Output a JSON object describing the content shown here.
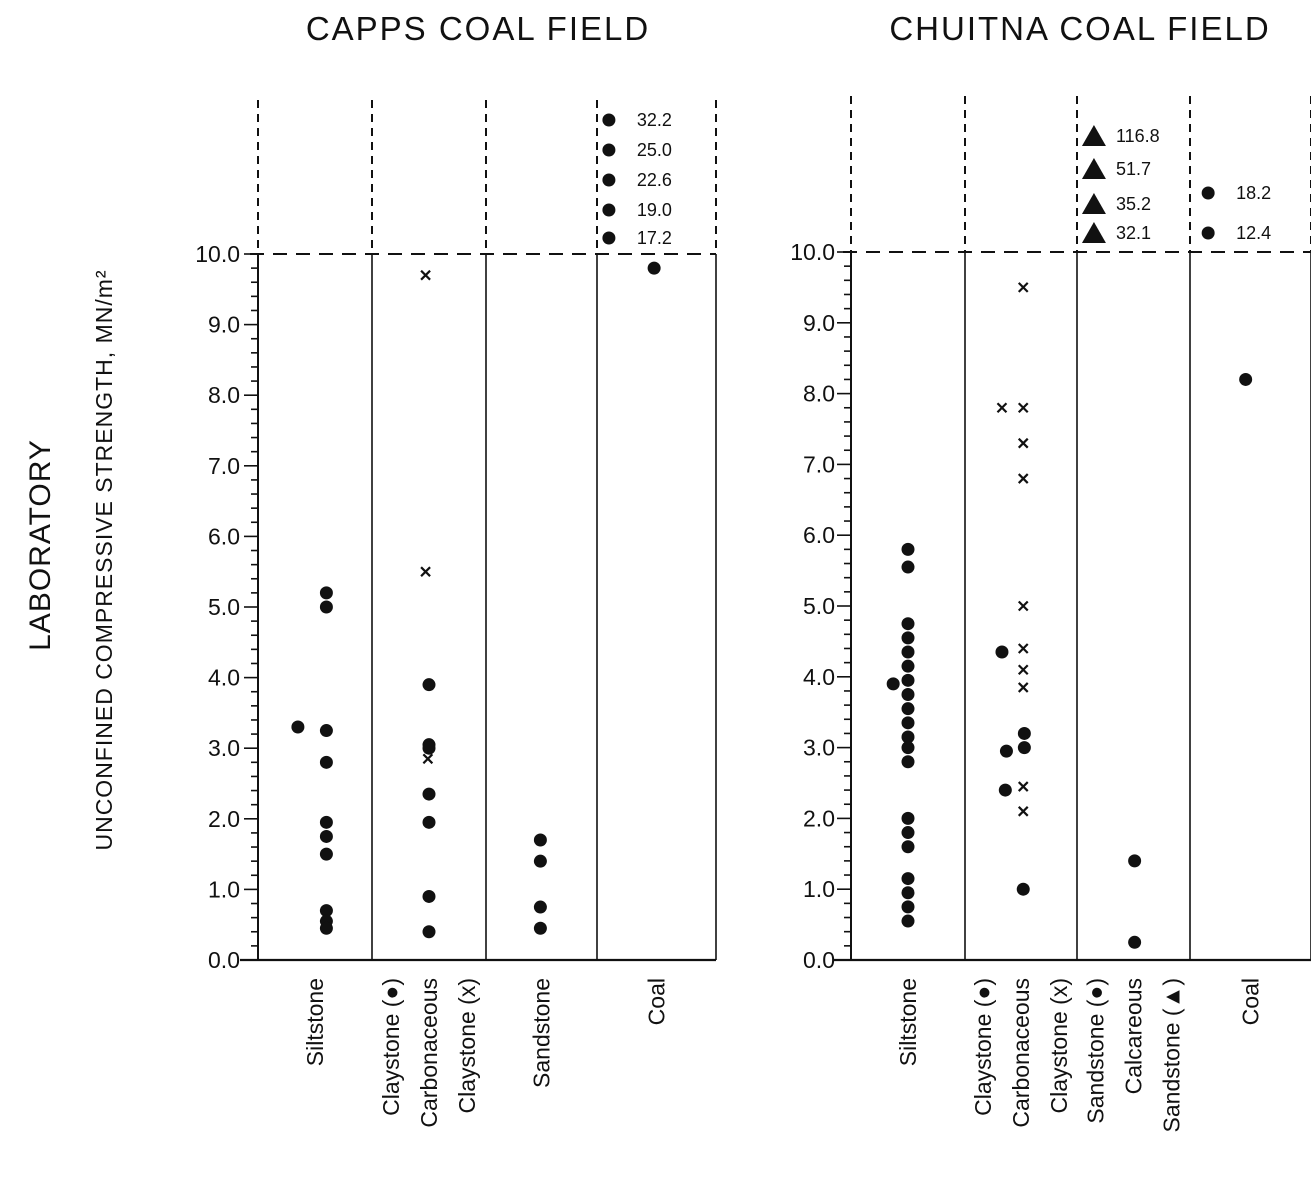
{
  "chart_data": {
    "type": "scatter",
    "ylabel_line1": "LABORATORY",
    "ylabel_line2": "UNCONFINED COMPRESSIVE STRENGTH, MN/m²",
    "ylim": [
      0,
      10
    ],
    "y_ticks": [
      "0.0",
      "1.0",
      "2.0",
      "3.0",
      "4.0",
      "5.0",
      "6.0",
      "7.0",
      "8.0",
      "9.0",
      "10.0"
    ],
    "symbols": {
      "dot": "solid circle",
      "x": "cross",
      "triangle": "solid triangle"
    },
    "panels": [
      {
        "title": "CAPPS  COAL  FIELD",
        "categories": [
          {
            "lines": [
              "Siltstone"
            ]
          },
          {
            "lines": [
              "Claystone  (●)",
              "Carbonaceous",
              "Claystone (x)"
            ]
          },
          {
            "lines": [
              "Sandstone"
            ]
          },
          {
            "lines": [
              "Coal"
            ]
          }
        ],
        "points": [
          {
            "cat": 0,
            "y": 5.2,
            "m": "dot",
            "off": 0.6
          },
          {
            "cat": 0,
            "y": 5.0,
            "m": "dot",
            "off": 0.6
          },
          {
            "cat": 0,
            "y": 3.3,
            "m": "dot",
            "off": 0.35
          },
          {
            "cat": 0,
            "y": 3.25,
            "m": "dot",
            "off": 0.6
          },
          {
            "cat": 0,
            "y": 2.8,
            "m": "dot",
            "off": 0.6
          },
          {
            "cat": 0,
            "y": 1.95,
            "m": "dot",
            "off": 0.6
          },
          {
            "cat": 0,
            "y": 1.75,
            "m": "dot",
            "off": 0.6
          },
          {
            "cat": 0,
            "y": 1.5,
            "m": "dot",
            "off": 0.6
          },
          {
            "cat": 0,
            "y": 0.7,
            "m": "dot",
            "off": 0.6
          },
          {
            "cat": 0,
            "y": 0.55,
            "m": "dot",
            "off": 0.6
          },
          {
            "cat": 0,
            "y": 0.45,
            "m": "dot",
            "off": 0.6
          },
          {
            "cat": 1,
            "y": 9.7,
            "m": "x",
            "off": 0.47
          },
          {
            "cat": 1,
            "y": 5.5,
            "m": "x",
            "off": 0.47
          },
          {
            "cat": 1,
            "y": 3.9,
            "m": "dot",
            "off": 0.5
          },
          {
            "cat": 1,
            "y": 3.05,
            "m": "dot",
            "off": 0.5
          },
          {
            "cat": 1,
            "y": 3.0,
            "m": "dot",
            "off": 0.5
          },
          {
            "cat": 1,
            "y": 2.85,
            "m": "x",
            "off": 0.49
          },
          {
            "cat": 1,
            "y": 2.35,
            "m": "dot",
            "off": 0.5
          },
          {
            "cat": 1,
            "y": 1.95,
            "m": "dot",
            "off": 0.5
          },
          {
            "cat": 1,
            "y": 0.9,
            "m": "dot",
            "off": 0.5
          },
          {
            "cat": 1,
            "y": 0.4,
            "m": "dot",
            "off": 0.5
          },
          {
            "cat": 2,
            "y": 1.7,
            "m": "dot",
            "off": 0.49
          },
          {
            "cat": 2,
            "y": 1.4,
            "m": "dot",
            "off": 0.49
          },
          {
            "cat": 2,
            "y": 0.75,
            "m": "dot",
            "off": 0.49
          },
          {
            "cat": 2,
            "y": 0.45,
            "m": "dot",
            "off": 0.49
          },
          {
            "cat": 3,
            "y": 9.8,
            "m": "dot",
            "off": 0.48
          }
        ],
        "offscale": [
          {
            "cat": 3,
            "m": "dot",
            "label": "32.2",
            "off": 0.1
          },
          {
            "cat": 3,
            "m": "dot",
            "label": "25.0",
            "off": 0.1
          },
          {
            "cat": 3,
            "m": "dot",
            "label": "22.6",
            "off": 0.1
          },
          {
            "cat": 3,
            "m": "dot",
            "label": "19.0",
            "off": 0.1
          },
          {
            "cat": 3,
            "m": "dot",
            "label": "17.2",
            "off": 0.1
          }
        ]
      },
      {
        "title": "CHUITNA  COAL  FIELD",
        "categories": [
          {
            "lines": [
              "Siltstone"
            ]
          },
          {
            "lines": [
              "Claystone  (●)",
              "Carbonaceous",
              "Claystone (x)"
            ]
          },
          {
            "lines": [
              "Sandstone (●)",
              "Calcareous",
              "Sandstone (▲)"
            ]
          },
          {
            "lines": [
              "Coal"
            ]
          }
        ],
        "points": [
          {
            "cat": 0,
            "y": 5.8,
            "m": "dot",
            "off": 0.5
          },
          {
            "cat": 0,
            "y": 5.55,
            "m": "dot",
            "off": 0.5
          },
          {
            "cat": 0,
            "y": 4.75,
            "m": "dot",
            "off": 0.5
          },
          {
            "cat": 0,
            "y": 4.55,
            "m": "dot",
            "off": 0.5
          },
          {
            "cat": 0,
            "y": 4.35,
            "m": "dot",
            "off": 0.5
          },
          {
            "cat": 0,
            "y": 4.15,
            "m": "dot",
            "off": 0.5
          },
          {
            "cat": 0,
            "y": 3.95,
            "m": "dot",
            "off": 0.5
          },
          {
            "cat": 0,
            "y": 3.9,
            "m": "dot",
            "off": 0.37
          },
          {
            "cat": 0,
            "y": 3.75,
            "m": "dot",
            "off": 0.5
          },
          {
            "cat": 0,
            "y": 3.55,
            "m": "dot",
            "off": 0.5
          },
          {
            "cat": 0,
            "y": 3.35,
            "m": "dot",
            "off": 0.5
          },
          {
            "cat": 0,
            "y": 3.15,
            "m": "dot",
            "off": 0.5
          },
          {
            "cat": 0,
            "y": 3.0,
            "m": "dot",
            "off": 0.5
          },
          {
            "cat": 0,
            "y": 2.8,
            "m": "dot",
            "off": 0.5
          },
          {
            "cat": 0,
            "y": 2.0,
            "m": "dot",
            "off": 0.5
          },
          {
            "cat": 0,
            "y": 1.8,
            "m": "dot",
            "off": 0.5
          },
          {
            "cat": 0,
            "y": 1.6,
            "m": "dot",
            "off": 0.5
          },
          {
            "cat": 0,
            "y": 1.15,
            "m": "dot",
            "off": 0.5
          },
          {
            "cat": 0,
            "y": 0.95,
            "m": "dot",
            "off": 0.5
          },
          {
            "cat": 0,
            "y": 0.75,
            "m": "dot",
            "off": 0.5
          },
          {
            "cat": 0,
            "y": 0.55,
            "m": "dot",
            "off": 0.5
          },
          {
            "cat": 1,
            "y": 9.5,
            "m": "x",
            "off": 0.52
          },
          {
            "cat": 1,
            "y": 7.8,
            "m": "x",
            "off": 0.33
          },
          {
            "cat": 1,
            "y": 7.8,
            "m": "x",
            "off": 0.52
          },
          {
            "cat": 1,
            "y": 7.3,
            "m": "x",
            "off": 0.52
          },
          {
            "cat": 1,
            "y": 6.8,
            "m": "x",
            "off": 0.52
          },
          {
            "cat": 1,
            "y": 5.0,
            "m": "x",
            "off": 0.52
          },
          {
            "cat": 1,
            "y": 4.4,
            "m": "x",
            "off": 0.52
          },
          {
            "cat": 1,
            "y": 4.35,
            "m": "dot",
            "off": 0.33
          },
          {
            "cat": 1,
            "y": 4.1,
            "m": "x",
            "off": 0.52
          },
          {
            "cat": 1,
            "y": 3.85,
            "m": "x",
            "off": 0.52
          },
          {
            "cat": 1,
            "y": 3.2,
            "m": "dot",
            "off": 0.53
          },
          {
            "cat": 1,
            "y": 3.0,
            "m": "dot",
            "off": 0.53
          },
          {
            "cat": 1,
            "y": 2.95,
            "m": "dot",
            "off": 0.37
          },
          {
            "cat": 1,
            "y": 2.45,
            "m": "x",
            "off": 0.52
          },
          {
            "cat": 1,
            "y": 2.4,
            "m": "dot",
            "off": 0.36
          },
          {
            "cat": 1,
            "y": 2.1,
            "m": "x",
            "off": 0.52
          },
          {
            "cat": 1,
            "y": 1.0,
            "m": "dot",
            "off": 0.52
          },
          {
            "cat": 2,
            "y": 1.4,
            "m": "dot",
            "off": 0.51
          },
          {
            "cat": 2,
            "y": 0.25,
            "m": "dot",
            "off": 0.51
          },
          {
            "cat": 3,
            "y": 8.2,
            "m": "dot",
            "off": 0.46
          }
        ],
        "offscale": [
          {
            "cat": 2,
            "m": "triangle",
            "label": "116.8",
            "off": 0.15
          },
          {
            "cat": 2,
            "m": "triangle",
            "label": "51.7",
            "off": 0.15
          },
          {
            "cat": 2,
            "m": "triangle",
            "label": "35.2",
            "off": 0.15
          },
          {
            "cat": 2,
            "m": "triangle",
            "label": "32.1",
            "off": 0.15
          },
          {
            "cat": 3,
            "m": "dot",
            "label": "18.2",
            "off": 0.15
          },
          {
            "cat": 3,
            "m": "dot",
            "label": "12.4",
            "off": 0.15
          }
        ]
      }
    ]
  }
}
